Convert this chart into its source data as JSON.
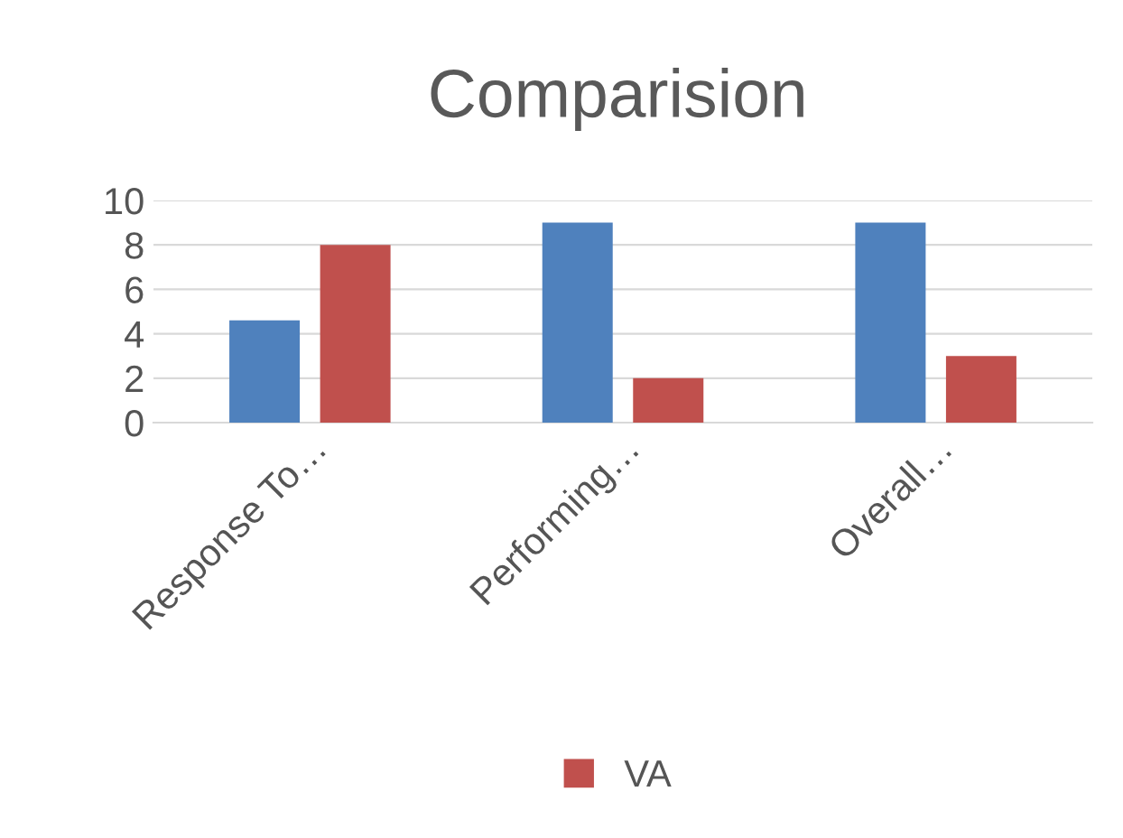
{
  "chart_data": {
    "type": "bar",
    "title": "Comparision",
    "categories": [
      "Response To…",
      "Performing…",
      "Overall…"
    ],
    "series": [
      {
        "color": "#4f81bd",
        "values": [
          4.6,
          9,
          9
        ]
      },
      {
        "name": "VA",
        "color": "#c0504d",
        "values": [
          8,
          2,
          3
        ]
      }
    ],
    "ylim": [
      0,
      10
    ],
    "yticks": [
      0,
      2,
      4,
      6,
      8,
      10
    ],
    "grid": "y",
    "legend": "bottom"
  }
}
